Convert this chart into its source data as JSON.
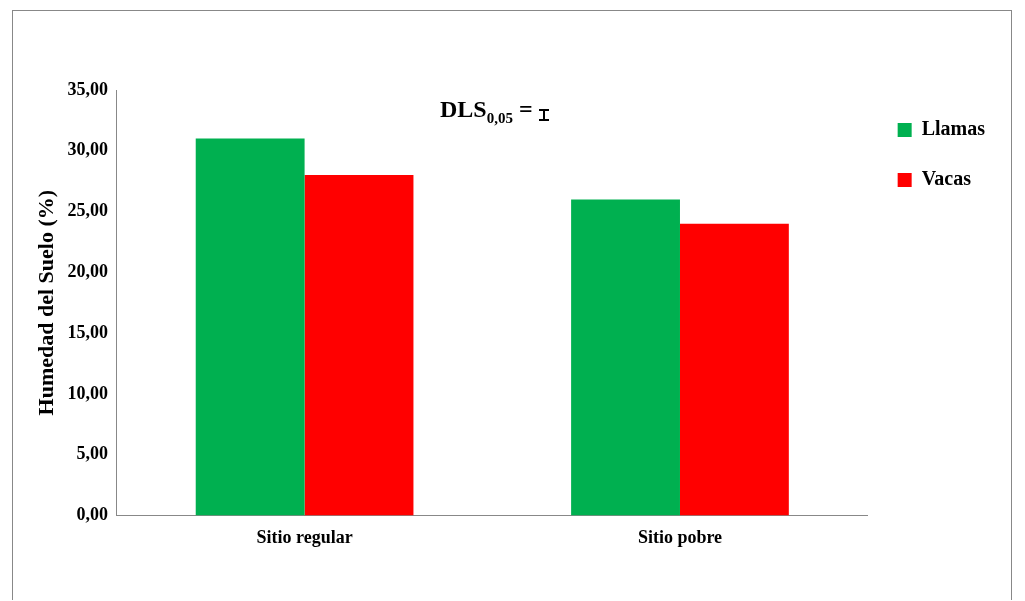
{
  "chart_data": {
    "type": "bar",
    "ylabel": "Humedad del Suelo (%)",
    "categories": [
      "Sitio regular",
      "Sitio pobre"
    ],
    "series": [
      {
        "name": "Llamas",
        "color": "#00b050",
        "values": [
          31,
          26
        ]
      },
      {
        "name": "Vacas",
        "color": "#ff0000",
        "values": [
          28,
          24
        ]
      }
    ],
    "ylim": [
      0,
      35
    ],
    "yticks": [
      {
        "value": 0,
        "label": "0,00"
      },
      {
        "value": 5,
        "label": "5,00"
      },
      {
        "value": 10,
        "label": "10,00"
      },
      {
        "value": 15,
        "label": "15,00"
      },
      {
        "value": 20,
        "label": "20,00"
      },
      {
        "value": 25,
        "label": "25,00"
      },
      {
        "value": 30,
        "label": "30,00"
      },
      {
        "value": 35,
        "label": "35,00"
      }
    ],
    "grid": false,
    "legend": "top right",
    "annotations": [
      "DLS$_{0,05}$ ="
    ]
  }
}
